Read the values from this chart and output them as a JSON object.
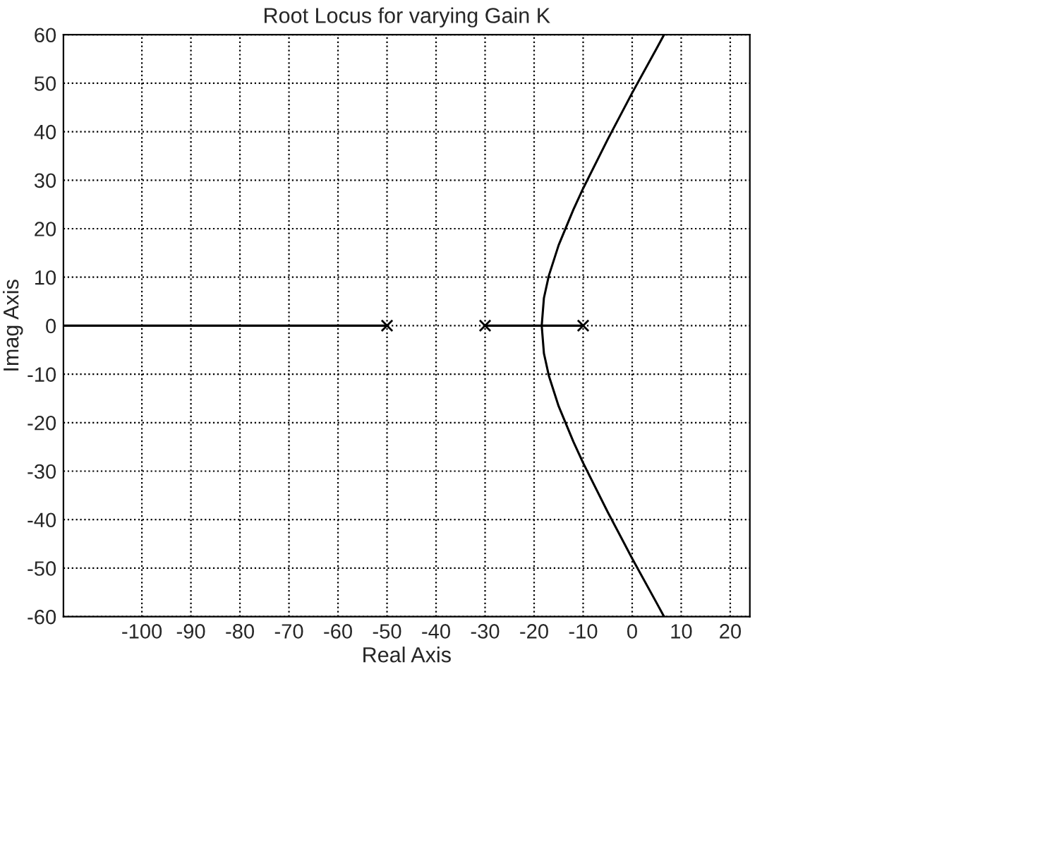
{
  "chart_data": {
    "type": "line",
    "title": "Root Locus for varying Gain K",
    "xlabel": "Real Axis",
    "ylabel": "Imag Axis",
    "xlim": [
      -116,
      24
    ],
    "ylim": [
      -60,
      60
    ],
    "xticks": [
      -100,
      -90,
      -80,
      -70,
      -60,
      -50,
      -40,
      -30,
      -20,
      -10,
      0,
      10,
      20
    ],
    "yticks": [
      -60,
      -50,
      -40,
      -30,
      -20,
      -10,
      0,
      10,
      20,
      30,
      40,
      50,
      60
    ],
    "grid": true,
    "series": [
      {
        "color": "#000000",
        "marker": "none",
        "x": [
          -116,
          -50
        ],
        "values": [
          0,
          0
        ]
      },
      {
        "color": "#000000",
        "marker": "none",
        "x": [
          -30,
          -10
        ],
        "values": [
          0,
          0
        ]
      },
      {
        "color": "#000000",
        "marker": "none",
        "x": [
          6.5,
          5,
          0,
          -5,
          -10,
          -12,
          -15,
          -17,
          -18,
          -18.45,
          -18,
          -17,
          -15,
          -12,
          -10,
          -5,
          0,
          5,
          6.5
        ],
        "values": [
          -60,
          -57.2,
          -48.0,
          -38.4,
          -28.3,
          -23.9,
          -16.6,
          -10.3,
          -5.7,
          0,
          5.7,
          10.3,
          16.6,
          23.9,
          28.3,
          38.4,
          48.0,
          57.2,
          60
        ]
      },
      {
        "type": "scatter",
        "color": "#000000",
        "marker": "cross",
        "x": [
          -50,
          -30,
          -10
        ],
        "values": [
          0,
          0,
          0
        ]
      }
    ]
  }
}
